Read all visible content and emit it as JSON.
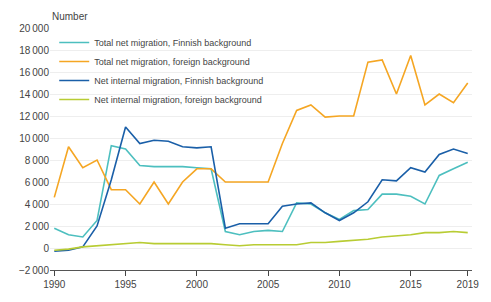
{
  "chart_data": {
    "type": "line",
    "ylabel": "Number",
    "x": [
      1990,
      1991,
      1992,
      1993,
      1994,
      1995,
      1996,
      1997,
      1998,
      1999,
      2000,
      2001,
      2002,
      2003,
      2004,
      2005,
      2006,
      2007,
      2008,
      2009,
      2010,
      2011,
      2012,
      2013,
      2014,
      2015,
      2016,
      2017,
      2018,
      2019
    ],
    "series": [
      {
        "name": "Total net migration, Finnish background",
        "color": "#4dbfbf",
        "values": [
          1800,
          1200,
          1000,
          2500,
          9300,
          9000,
          7500,
          7400,
          7400,
          7400,
          7300,
          7200,
          1500,
          1200,
          1500,
          1600,
          1500,
          4100,
          4000,
          3200,
          2600,
          3400,
          3500,
          4900,
          4900,
          4700,
          4000,
          6600,
          7200,
          7800
        ]
      },
      {
        "name": "Total net migration, foreign background",
        "color": "#f5a623",
        "values": [
          4600,
          9200,
          7300,
          8000,
          5300,
          5300,
          4000,
          6000,
          4000,
          6000,
          7200,
          7200,
          6000,
          6000,
          6000,
          6000,
          9500,
          12500,
          13000,
          11900,
          12000,
          12000,
          16900,
          17100,
          14000,
          17500,
          13000,
          14000,
          13200,
          15000
        ]
      },
      {
        "name": "Net internal migration, Finnish background",
        "color": "#1a5fa8",
        "values": [
          -300,
          -200,
          100,
          2000,
          6200,
          11000,
          9500,
          9800,
          9700,
          9200,
          9100,
          9200,
          1800,
          2200,
          2200,
          2200,
          3800,
          4000,
          4100,
          3200,
          2500,
          3200,
          4200,
          6200,
          6100,
          7300,
          6900,
          8500,
          9000,
          8600
        ]
      },
      {
        "name": "Net internal migration, foreign background",
        "color": "#b8cc33",
        "values": [
          -200,
          -100,
          100,
          200,
          300,
          400,
          500,
          400,
          400,
          400,
          400,
          400,
          300,
          200,
          300,
          300,
          300,
          300,
          500,
          500,
          600,
          700,
          800,
          1000,
          1100,
          1200,
          1400,
          1400,
          1500,
          1400
        ]
      }
    ],
    "xlim": [
      1989.7,
      2019.3
    ],
    "xticks": [
      1990,
      1995,
      2000,
      2005,
      2010,
      2015,
      2019
    ],
    "ylim": [
      -2000,
      20000
    ],
    "yticks": [
      {
        "value": -2000,
        "label": "−2 000"
      },
      0,
      {
        "value": 2000,
        "label": "2 000"
      },
      {
        "value": 4000,
        "label": "4 000"
      },
      {
        "value": 6000,
        "label": "6 000"
      },
      {
        "value": 8000,
        "label": "8 000"
      },
      {
        "value": 10000,
        "label": "10 000"
      },
      {
        "value": 12000,
        "label": "12 000"
      },
      {
        "value": 14000,
        "label": "14 000"
      },
      {
        "value": 16000,
        "label": "16 000"
      },
      {
        "value": 18000,
        "label": "18 000"
      },
      {
        "value": 20000,
        "label": "20 000"
      }
    ],
    "grid": true,
    "legend": "upper left"
  }
}
